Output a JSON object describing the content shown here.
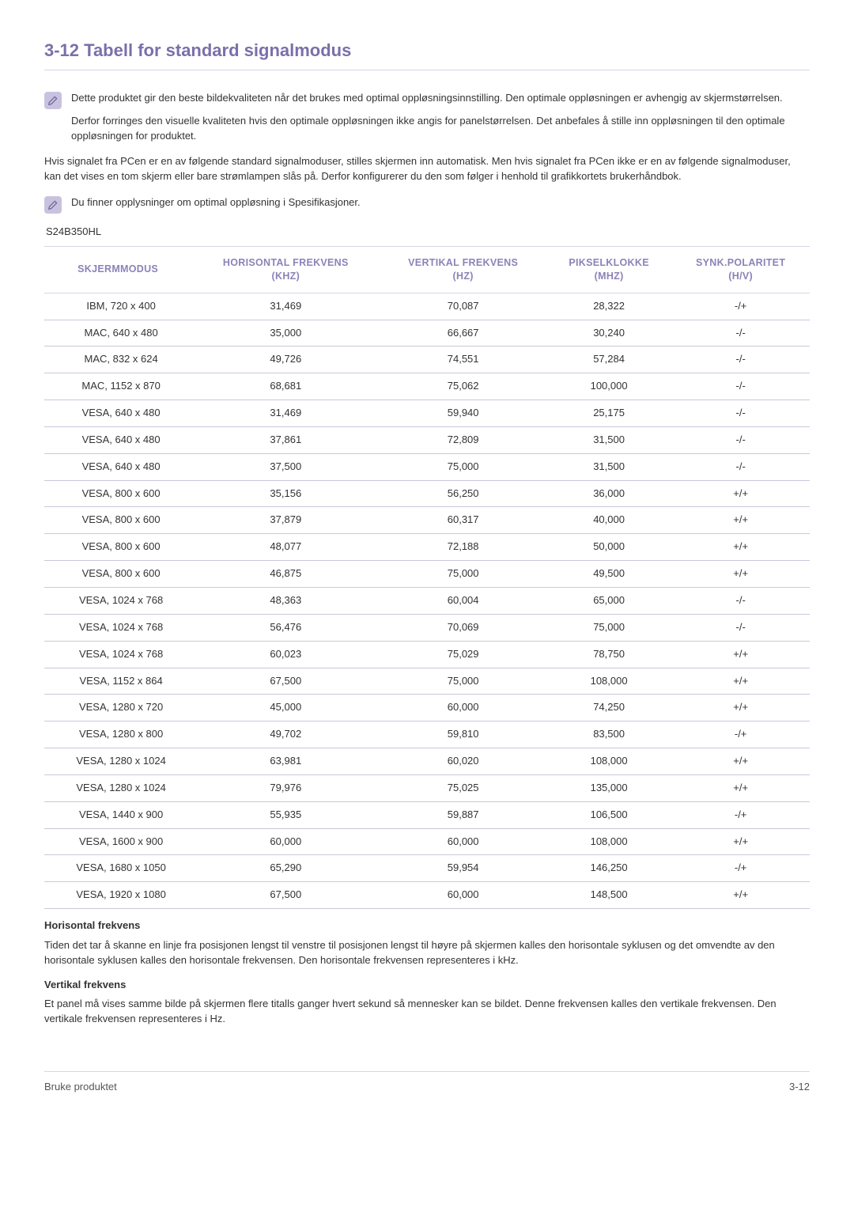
{
  "title": "3-12  Tabell for standard signalmodus",
  "notes": {
    "a_p1": "Dette produktet gir den beste bildekvaliteten når det brukes med optimal oppløsningsinnstilling. Den optimale oppløsningen er avhengig av skjermstørrelsen.",
    "a_p2": "Derfor forringes den visuelle kvaliteten hvis den optimale oppløsningen ikke angis for panelstørrelsen. Det anbefales å stille inn oppløsningen til den optimale oppløsningen for produktet.",
    "b": "Du finner opplysninger om optimal oppløsning i Spesifikasjoner."
  },
  "body": "Hvis signalet fra PCen er en av følgende standard signalmoduser, stilles skjermen inn automatisk. Men hvis signalet fra PCen ikke er en av følgende signalmoduser, kan det vises en tom skjerm eller bare strømlampen slås på. Derfor konfigurerer du den som følger i henhold til grafikkortets brukerhåndbok.",
  "model": "S24B350HL",
  "table": {
    "columns": [
      "SKJERMMODUS",
      "HORISONTAL FREKVENS (KHZ)",
      "VERTIKAL FREKVENS (HZ)",
      "PIKSELKLOKKE (MHZ)",
      "SYNK.POLARITET (H/V)"
    ],
    "rows": [
      [
        "IBM, 720 x 400",
        "31,469",
        "70,087",
        "28,322",
        "-/+"
      ],
      [
        "MAC, 640 x 480",
        "35,000",
        "66,667",
        "30,240",
        "-/-"
      ],
      [
        "MAC, 832 x 624",
        "49,726",
        "74,551",
        "57,284",
        "-/-"
      ],
      [
        "MAC, 1152 x 870",
        "68,681",
        "75,062",
        "100,000",
        "-/-"
      ],
      [
        "VESA, 640 x 480",
        "31,469",
        "59,940",
        "25,175",
        "-/-"
      ],
      [
        "VESA, 640 x 480",
        "37,861",
        "72,809",
        "31,500",
        "-/-"
      ],
      [
        "VESA, 640 x 480",
        "37,500",
        "75,000",
        "31,500",
        "-/-"
      ],
      [
        "VESA, 800 x 600",
        "35,156",
        "56,250",
        "36,000",
        "+/+"
      ],
      [
        "VESA, 800 x 600",
        "37,879",
        "60,317",
        "40,000",
        "+/+"
      ],
      [
        "VESA, 800 x 600",
        "48,077",
        "72,188",
        "50,000",
        "+/+"
      ],
      [
        "VESA, 800 x 600",
        "46,875",
        "75,000",
        "49,500",
        "+/+"
      ],
      [
        "VESA, 1024 x 768",
        "48,363",
        "60,004",
        "65,000",
        "-/-"
      ],
      [
        "VESA, 1024 x 768",
        "56,476",
        "70,069",
        "75,000",
        "-/-"
      ],
      [
        "VESA, 1024 x 768",
        "60,023",
        "75,029",
        "78,750",
        "+/+"
      ],
      [
        "VESA, 1152 x 864",
        "67,500",
        "75,000",
        "108,000",
        "+/+"
      ],
      [
        "VESA, 1280 x 720",
        "45,000",
        "60,000",
        "74,250",
        "+/+"
      ],
      [
        "VESA, 1280 x 800",
        "49,702",
        "59,810",
        "83,500",
        "-/+"
      ],
      [
        "VESA, 1280 x 1024",
        "63,981",
        "60,020",
        "108,000",
        "+/+"
      ],
      [
        "VESA, 1280 x 1024",
        "79,976",
        "75,025",
        "135,000",
        "+/+"
      ],
      [
        "VESA, 1440 x 900",
        "55,935",
        "59,887",
        "106,500",
        "-/+"
      ],
      [
        "VESA, 1600 x 900",
        "60,000",
        "60,000",
        "108,000",
        "+/+"
      ],
      [
        "VESA, 1680 x 1050",
        "65,290",
        "59,954",
        "146,250",
        "-/+"
      ],
      [
        "VESA, 1920 x 1080",
        "67,500",
        "60,000",
        "148,500",
        "+/+"
      ]
    ]
  },
  "defs": {
    "h1": "Horisontal frekvens",
    "p1": "Tiden det tar å skanne en linje fra posisjonen lengst til venstre til posisjonen lengst til høyre på skjermen kalles den horisontale syklusen og det omvendte av den horisontale syklusen kalles den horisontale frekvensen. Den horisontale frekvensen representeres i kHz.",
    "h2": "Vertikal frekvens",
    "p2": "Et panel må vises samme bilde på skjermen flere titalls ganger hvert sekund så mennesker kan se bildet. Denne frekvensen kalles den vertikale frekvensen. Den vertikale frekvensen representeres i Hz."
  },
  "footer": {
    "left": "Bruke produktet",
    "right": "3-12"
  }
}
